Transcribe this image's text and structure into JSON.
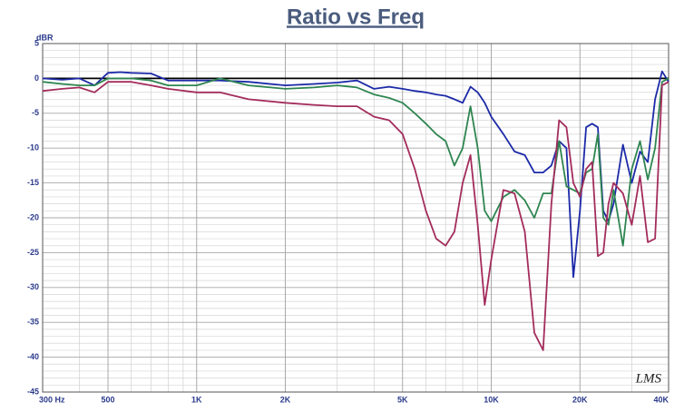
{
  "chart_data": {
    "type": "line",
    "title": "Ratio vs Freq",
    "ylabel": "dBR",
    "watermark": "LMS",
    "xscale": "log",
    "grid": true,
    "zero_line": true,
    "xlim": [
      300,
      40000
    ],
    "ylim": [
      -45,
      5
    ],
    "xticks": [
      {
        "value": 300,
        "label": "300 Hz"
      },
      500,
      {
        "value": 1000,
        "label": "1K"
      },
      {
        "value": 2000,
        "label": "2K"
      },
      {
        "value": 5000,
        "label": "5K"
      },
      {
        "value": 10000,
        "label": "10K"
      },
      {
        "value": 20000,
        "label": "20K"
      },
      {
        "value": 40000,
        "label": "40K"
      }
    ],
    "xminorticks": [
      400,
      600,
      700,
      800,
      900,
      3000,
      4000,
      6000,
      7000,
      8000,
      9000,
      30000
    ],
    "yticks": [
      5,
      0,
      -5,
      -10,
      -15,
      -20,
      -25,
      -30,
      -35,
      -40,
      -45
    ],
    "yminorticks": [
      4,
      3,
      2,
      1,
      -1,
      -2,
      -3,
      -4,
      -6,
      -7,
      -8,
      -9,
      -11,
      -12,
      -13,
      -14,
      -16,
      -17,
      -18,
      -19,
      -21,
      -22,
      -23,
      -24,
      -26,
      -27,
      -28,
      -29,
      -31,
      -32,
      -33,
      -34,
      -36,
      -37,
      -38,
      -39,
      -41,
      -42,
      -43,
      -44
    ],
    "x": [
      300,
      350,
      400,
      450,
      500,
      550,
      600,
      700,
      800,
      1000,
      1200,
      1500,
      2000,
      2500,
      3000,
      3500,
      4000,
      4500,
      5000,
      5500,
      6000,
      6500,
      7000,
      7500,
      8000,
      8500,
      9000,
      9500,
      10000,
      11000,
      12000,
      13000,
      14000,
      15000,
      16000,
      17000,
      18000,
      19000,
      20000,
      21000,
      22000,
      23000,
      24000,
      25000,
      26000,
      28000,
      30000,
      32000,
      34000,
      36000,
      38000,
      40000
    ],
    "series": [
      {
        "color": "#1c2aa8",
        "values": [
          0,
          -0.2,
          0,
          -1,
          0.8,
          0.9,
          0.8,
          0.7,
          -0.3,
          -0.3,
          -0.3,
          -0.5,
          -1,
          -0.8,
          -0.6,
          -0.3,
          -1.5,
          -1.2,
          -1.5,
          -1.8,
          -2,
          -2.3,
          -2.5,
          -3,
          -3.5,
          -1.2,
          -2,
          -3.5,
          -5.5,
          -8,
          -10.5,
          -11,
          -13.5,
          -13.5,
          -12.5,
          -9,
          -10,
          -28.5,
          -19,
          -7,
          -6.5,
          -7,
          -19,
          -20.5,
          -18,
          -9.5,
          -15,
          -10.5,
          -12,
          -3,
          1,
          -0.5
        ]
      },
      {
        "color": "#2e8550",
        "values": [
          -0.5,
          -0.8,
          -1,
          -1,
          0,
          0,
          0,
          -0.3,
          -1,
          -1,
          0,
          -1,
          -1.5,
          -1.3,
          -1,
          -1.3,
          -2.3,
          -2.8,
          -3.5,
          -5,
          -6.5,
          -8,
          -9,
          -12.5,
          -10,
          -4,
          -10,
          -19,
          -20.5,
          -17,
          -16,
          -17.5,
          -20,
          -16.5,
          -16.5,
          -9,
          -15.5,
          -16,
          -16.5,
          -13.5,
          -13,
          -8,
          -20,
          -21,
          -16,
          -24,
          -13,
          -9,
          -14.5,
          -10,
          -0.5,
          0
        ]
      },
      {
        "color": "#a32c5c",
        "values": [
          -1.8,
          -1.5,
          -1.3,
          -2,
          -0.5,
          -0.5,
          -0.5,
          -1,
          -1.5,
          -2,
          -2,
          -3,
          -3.5,
          -3.8,
          -4,
          -4,
          -5.5,
          -6,
          -8,
          -13,
          -19,
          -23,
          -24,
          -22,
          -15,
          -11,
          -21,
          -32.5,
          -26,
          -16,
          -16.5,
          -22,
          -36.5,
          -39,
          -18,
          -6,
          -7,
          -15,
          -17,
          -13,
          -12,
          -25.5,
          -25,
          -18,
          -15,
          -16.5,
          -21,
          -14,
          -23.5,
          -23,
          -1,
          -0.5
        ]
      }
    ]
  }
}
